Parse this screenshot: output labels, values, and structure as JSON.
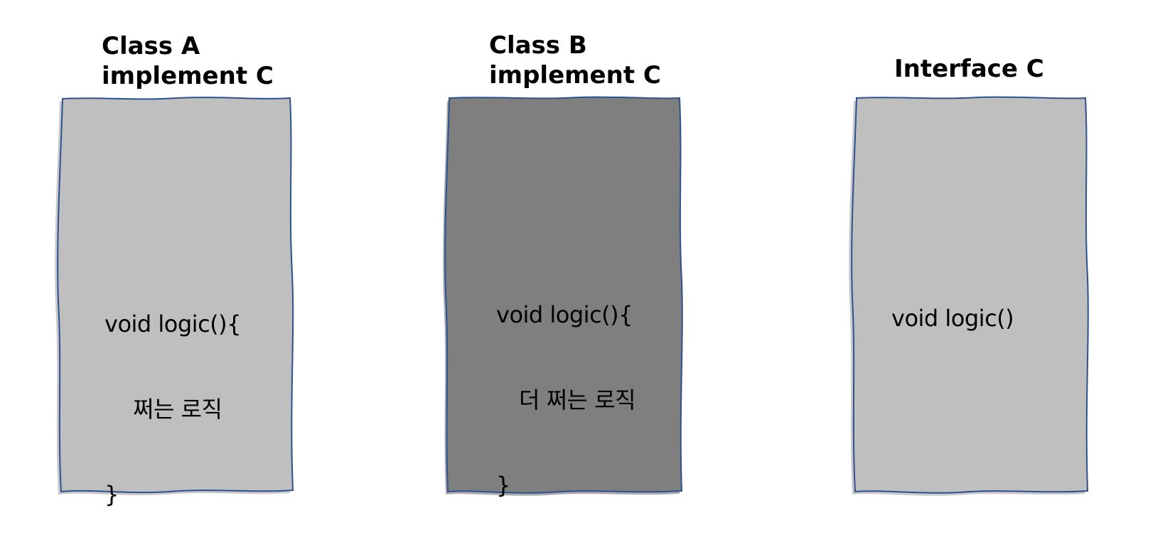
{
  "colors": {
    "box_light": "#bfbfbf",
    "box_dark": "#7f7f7f",
    "box_stroke": "#2f4f8f",
    "shadow": "#a6a6a6"
  },
  "class_a": {
    "title_line1": "Class A",
    "title_line2": "implement C",
    "code_line1": "void logic(){",
    "code_line2": "쩌는 로직",
    "code_line3": "}"
  },
  "class_b": {
    "title_line1": "Class B",
    "title_line2": "implement C",
    "code_line1": "void logic(){",
    "code_line2": "더 쩌는 로직",
    "code_line3": "}"
  },
  "interface_c": {
    "title": "Interface C",
    "code_line1": "void logic()"
  }
}
